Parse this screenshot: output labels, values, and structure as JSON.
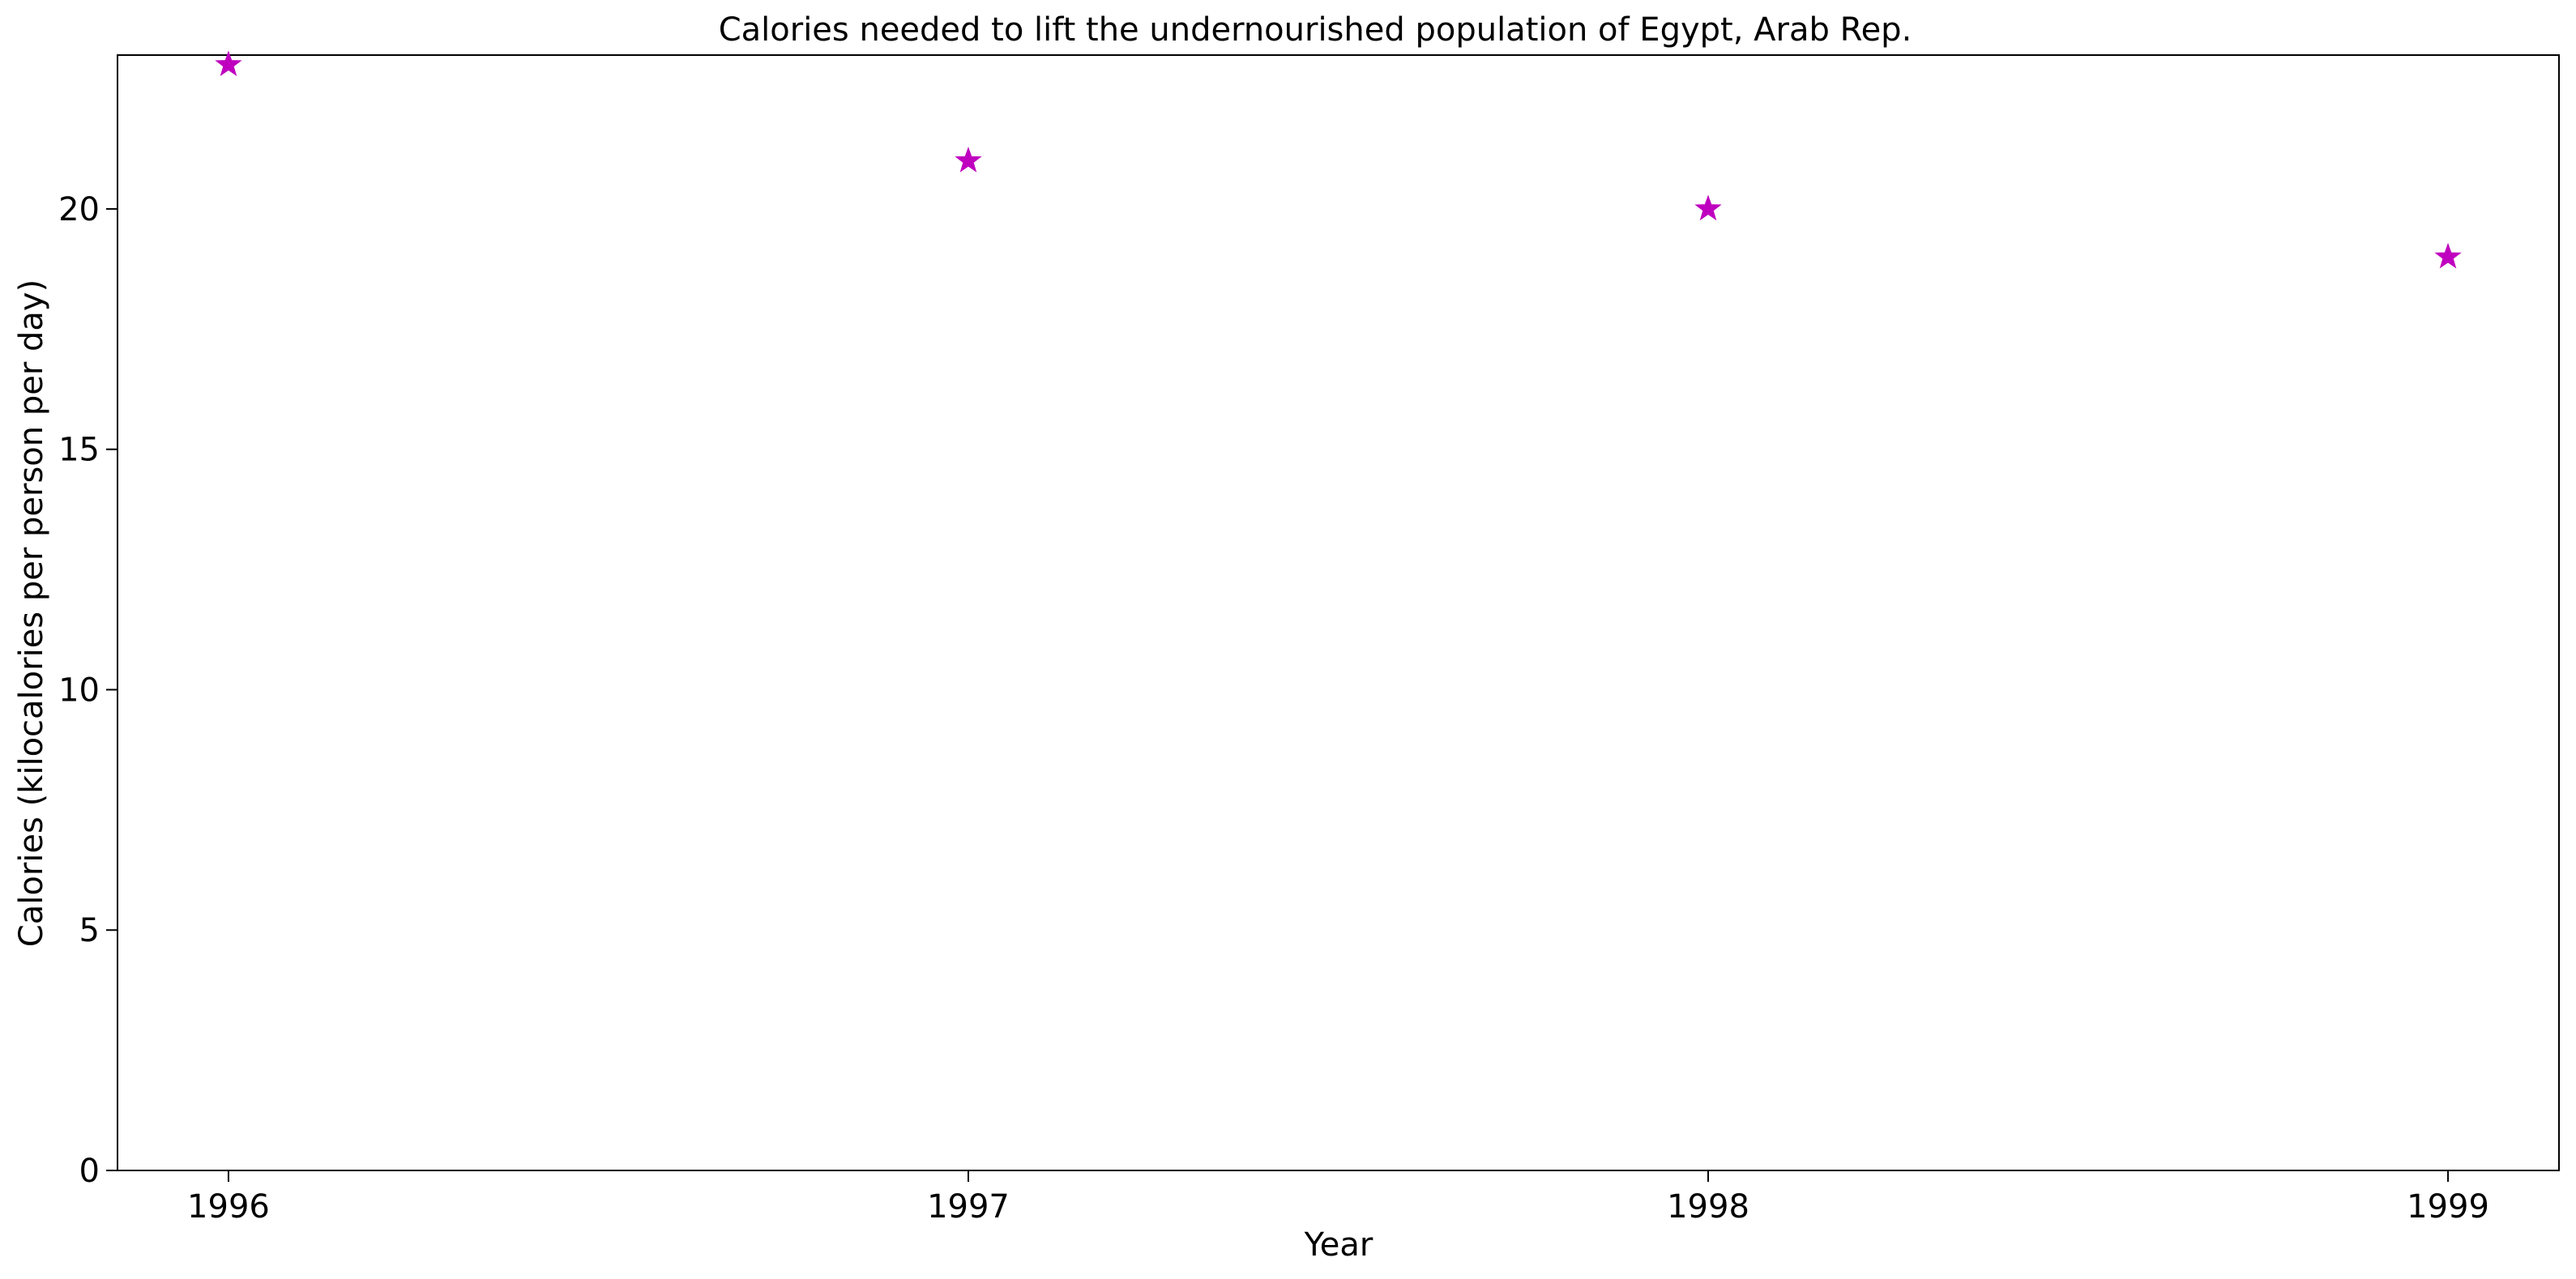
{
  "chart_data": {
    "type": "scatter",
    "title": "Calories needed to lift the undernourished population of Egypt, Arab Rep.",
    "xlabel": "Year",
    "ylabel": "Calories (kilocalories per person per day)",
    "x": [
      1996,
      1997,
      1998,
      1999
    ],
    "values": [
      23,
      21,
      20,
      19
    ],
    "x_ticks": [
      "1996",
      "1997",
      "1998",
      "1999"
    ],
    "y_ticks": [
      0,
      5,
      10,
      15,
      20
    ],
    "xlim": [
      1995.85,
      1999.15
    ],
    "ylim": [
      0,
      23.2
    ],
    "marker": "star",
    "color": "#bf00bf",
    "grid": false,
    "legend": "none"
  }
}
